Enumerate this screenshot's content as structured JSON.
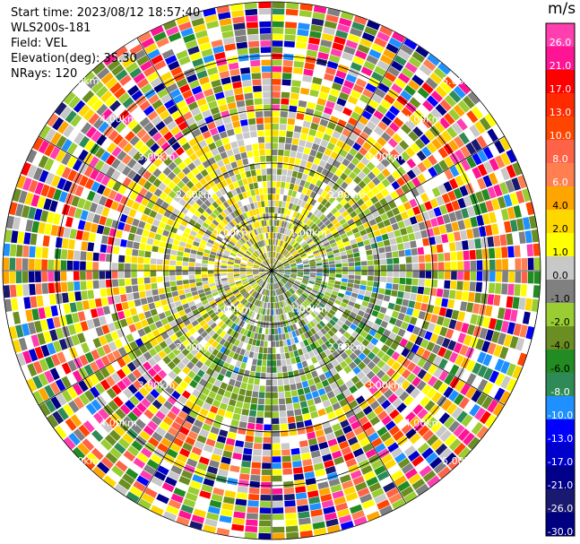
{
  "info": {
    "start_time": "Start time: 2023/08/12 18:57:40",
    "site": "WLS200s-181",
    "field": "Field: VEL",
    "elevation": "Elevation(deg): 35.30",
    "nrays": "NRays: 120"
  },
  "chart_data": {
    "type": "heatmap",
    "projection": "polar-ppi",
    "title": "",
    "field": "VEL",
    "nrays": 120,
    "range_ring_labels": [
      "1.00km",
      "2.00km",
      "3.00km",
      "4.00km",
      "5.00km"
    ],
    "colorbar": {
      "unit": "m/s",
      "ticks": [
        "26.0",
        "21.0",
        "17.0",
        "13.0",
        "10.0",
        "8.0",
        "6.0",
        "4.0",
        "2.0",
        "1.0",
        "0.0",
        "-1.0",
        "-2.0",
        "-4.0",
        "-6.0",
        "-8.0",
        "-10.0",
        "-13.0",
        "-17.0",
        "-21.0",
        "-26.0",
        "-30.0"
      ],
      "colors_top_to_bottom": [
        "#ff3fb0",
        "#ff1493",
        "#ff0000",
        "#ff2a00",
        "#ff4500",
        "#ff6347",
        "#ff7f50",
        "#ffa500",
        "#ffd700",
        "#ffff00",
        "#c8c8c8",
        "#808080",
        "#9acd32",
        "#6b8e23",
        "#228b22",
        "#2e8b57",
        "#1e90ff",
        "#0000ff",
        "#0000cd",
        "#00008b",
        "#191970",
        "#000080"
      ]
    },
    "colors": {
      "pos_high": [
        "#ff3fb0",
        "#ff1493",
        "#ff0000",
        "#ff4500"
      ],
      "pos_mid": [
        "#ff6347",
        "#ff7f50",
        "#ffa500"
      ],
      "pos_low": [
        "#ffd700",
        "#ffff00"
      ],
      "zero": [
        "#808080",
        "#c8c8c8"
      ],
      "neg_low": [
        "#9acd32",
        "#6b8e23"
      ],
      "neg_mid": [
        "#228b22",
        "#2e8b57",
        "#1e90ff"
      ],
      "neg_high": [
        "#0000ff",
        "#0000cd",
        "#00008b",
        "#191970",
        "#000080"
      ]
    }
  }
}
